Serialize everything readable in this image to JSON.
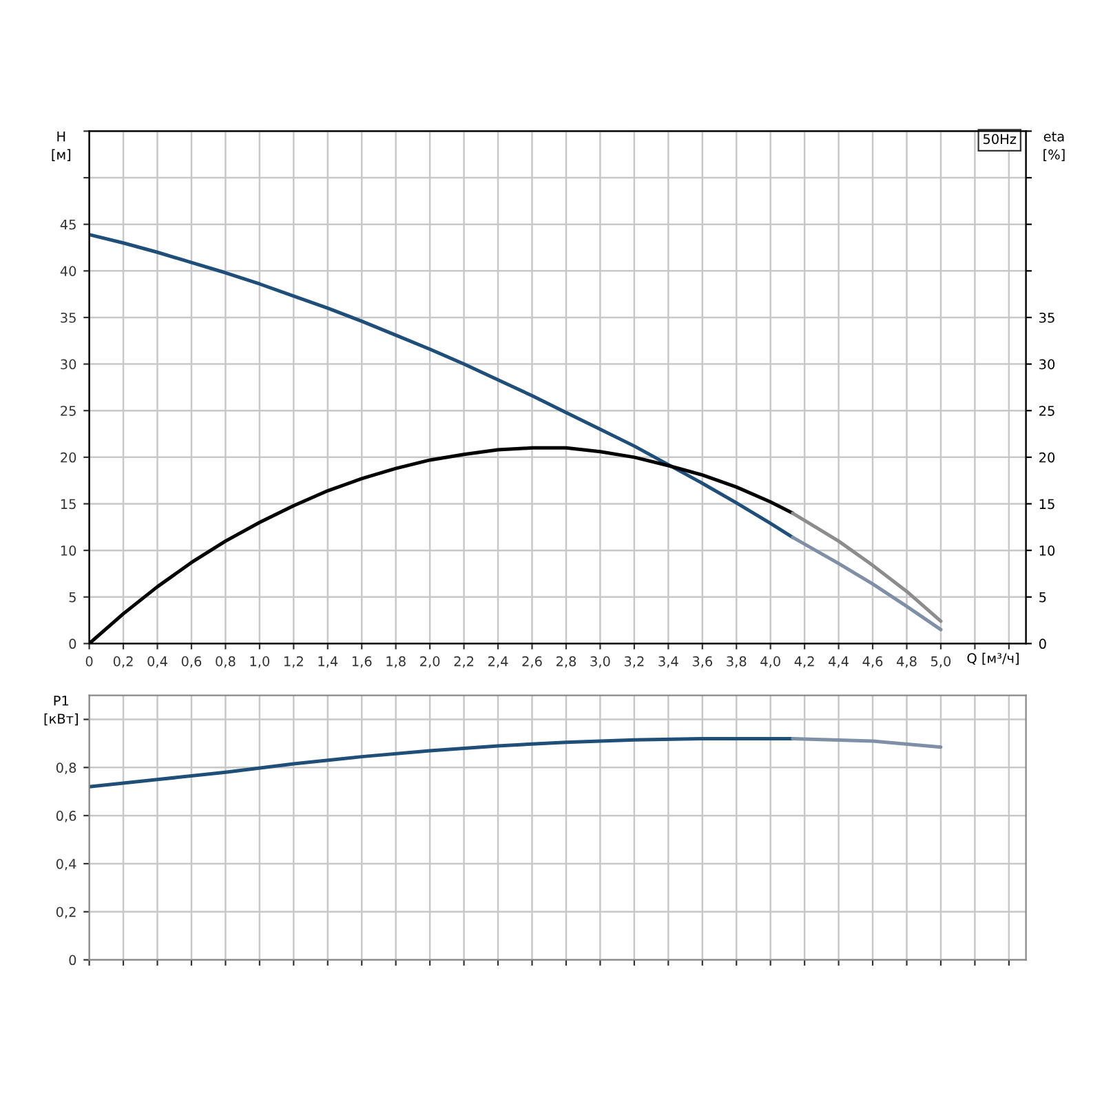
{
  "chart_data": [
    {
      "type": "line",
      "ylabel": "H\n[м]",
      "y2label": "eta\n[%]",
      "xlabel": "Q [м³/ч]",
      "annotations": [
        "50Hz"
      ],
      "grid": true,
      "xlim": [
        0,
        5.5
      ],
      "xticks": [
        0,
        {
          "value": 0.2,
          "label": "0,2"
        },
        {
          "value": 0.4,
          "label": "0,4"
        },
        {
          "value": 0.6,
          "label": "0,6"
        },
        {
          "value": 0.8,
          "label": "0,8"
        },
        {
          "value": 1.0,
          "label": "1,0"
        },
        {
          "value": 1.2,
          "label": "1,2"
        },
        {
          "value": 1.4,
          "label": "1,4"
        },
        {
          "value": 1.6,
          "label": "1,6"
        },
        {
          "value": 1.8,
          "label": "1,8"
        },
        {
          "value": 2.0,
          "label": "2,0"
        },
        {
          "value": 2.2,
          "label": "2,2"
        },
        {
          "value": 2.4,
          "label": "2,4"
        },
        {
          "value": 2.6,
          "label": "2,6"
        },
        {
          "value": 2.8,
          "label": "2,8"
        },
        {
          "value": 3.0,
          "label": "3,0"
        },
        {
          "value": 3.2,
          "label": "3,2"
        },
        {
          "value": 3.4,
          "label": "3,4"
        },
        {
          "value": 3.6,
          "label": "3,6"
        },
        {
          "value": 3.8,
          "label": "3,8"
        },
        {
          "value": 4.0,
          "label": "4,0"
        },
        {
          "value": 4.2,
          "label": "4,2"
        },
        {
          "value": 4.4,
          "label": "4,4"
        },
        {
          "value": 4.6,
          "label": "4,6"
        },
        {
          "value": 4.8,
          "label": "4,8"
        },
        {
          "value": 5.0,
          "label": "5,0"
        },
        {
          "value": 5.2,
          "label": null
        },
        {
          "value": 5.4,
          "label": null
        }
      ],
      "ylim": [
        0,
        55
      ],
      "yticks": [
        0,
        5,
        10,
        15,
        20,
        25,
        30,
        35,
        40,
        45,
        {
          "value": 50,
          "label": null
        },
        {
          "value": 55,
          "label": null
        }
      ],
      "y2lim": [
        0,
        55
      ],
      "y2ticks": [
        0,
        5,
        10,
        15,
        20,
        25,
        30,
        35,
        {
          "value": 40,
          "label": null
        },
        {
          "value": 45,
          "label": null
        },
        {
          "value": 50,
          "label": null
        },
        {
          "value": 55,
          "label": null
        }
      ],
      "series": [
        {
          "color": "#1f4e79",
          "x": [
            0,
            0.2,
            0.4,
            0.6,
            0.8,
            1.0,
            1.2,
            1.4,
            1.6,
            1.8,
            2.0,
            2.2,
            2.4,
            2.6,
            2.8,
            3.0,
            3.2,
            3.4,
            3.6,
            3.8,
            4.0,
            4.13
          ],
          "values": [
            43.9,
            43.0,
            42.0,
            40.9,
            39.8,
            38.6,
            37.3,
            36.0,
            34.6,
            33.1,
            31.6,
            30.0,
            28.3,
            26.6,
            24.8,
            23.0,
            21.2,
            19.2,
            17.2,
            15.1,
            12.9,
            11.4
          ]
        },
        {
          "color": "#7f8fa6",
          "x": [
            4.13,
            4.4,
            4.6,
            4.8,
            5.0
          ],
          "values": [
            11.4,
            8.6,
            6.4,
            4.0,
            1.5
          ]
        },
        {
          "color": "#000000",
          "axis": "y2",
          "x": [
            0,
            0.2,
            0.4,
            0.6,
            0.8,
            1.0,
            1.2,
            1.4,
            1.6,
            1.8,
            2.0,
            2.2,
            2.4,
            2.6,
            2.8,
            3.0,
            3.2,
            3.4,
            3.6,
            3.8,
            4.0,
            4.13
          ],
          "values": [
            0,
            3.2,
            6.1,
            8.7,
            11.0,
            13.0,
            14.8,
            16.4,
            17.7,
            18.8,
            19.7,
            20.3,
            20.8,
            21.0,
            21.0,
            20.6,
            20.0,
            19.1,
            18.1,
            16.8,
            15.2,
            14.0
          ]
        },
        {
          "color": "#8c8c8c",
          "axis": "y2",
          "x": [
            4.13,
            4.4,
            4.6,
            4.8,
            5.0
          ],
          "values": [
            14.0,
            11.0,
            8.4,
            5.6,
            2.4
          ]
        }
      ]
    },
    {
      "type": "line",
      "ylabel": "P1\n[кВт]",
      "grid": true,
      "tick_labels": "y",
      "xlim": [
        0,
        5.5
      ],
      "xticks": [
        {
          "value": 0,
          "label": null
        },
        {
          "value": 0.2,
          "label": null
        },
        {
          "value": 0.4,
          "label": null
        },
        {
          "value": 0.6,
          "label": null
        },
        {
          "value": 0.8,
          "label": null
        },
        {
          "value": 1.0,
          "label": null
        },
        {
          "value": 1.2,
          "label": null
        },
        {
          "value": 1.4,
          "label": null
        },
        {
          "value": 1.6,
          "label": null
        },
        {
          "value": 1.8,
          "label": null
        },
        {
          "value": 2.0,
          "label": null
        },
        {
          "value": 2.2,
          "label": null
        },
        {
          "value": 2.4,
          "label": null
        },
        {
          "value": 2.6,
          "label": null
        },
        {
          "value": 2.8,
          "label": null
        },
        {
          "value": 3.0,
          "label": null
        },
        {
          "value": 3.2,
          "label": null
        },
        {
          "value": 3.4,
          "label": null
        },
        {
          "value": 3.6,
          "label": null
        },
        {
          "value": 3.8,
          "label": null
        },
        {
          "value": 4.0,
          "label": null
        },
        {
          "value": 4.2,
          "label": null
        },
        {
          "value": 4.4,
          "label": null
        },
        {
          "value": 4.6,
          "label": null
        },
        {
          "value": 4.8,
          "label": null
        },
        {
          "value": 5.0,
          "label": null
        },
        {
          "value": 5.2,
          "label": null
        },
        {
          "value": 5.4,
          "label": null
        }
      ],
      "ylim": [
        0,
        1.1
      ],
      "yticks": [
        0,
        {
          "value": 0.2,
          "label": "0,2"
        },
        {
          "value": 0.4,
          "label": "0,4"
        },
        {
          "value": 0.6,
          "label": "0,6"
        },
        {
          "value": 0.8,
          "label": "0,8"
        },
        {
          "value": 1.0,
          "label": null
        }
      ],
      "series": [
        {
          "color": "#1f4e79",
          "x": [
            0,
            0.4,
            0.8,
            1.2,
            1.6,
            2.0,
            2.4,
            2.8,
            3.2,
            3.6,
            4.0,
            4.13
          ],
          "values": [
            0.72,
            0.75,
            0.78,
            0.815,
            0.845,
            0.87,
            0.89,
            0.905,
            0.915,
            0.92,
            0.92,
            0.92
          ]
        },
        {
          "color": "#7f8fa6",
          "x": [
            4.13,
            4.6,
            5.0
          ],
          "values": [
            0.92,
            0.91,
            0.885
          ]
        }
      ]
    }
  ]
}
